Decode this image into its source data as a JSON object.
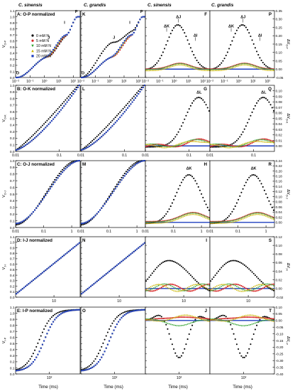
{
  "figure": {
    "column_headers": [
      "C. sinensis",
      "C. grandis",
      "C. sinensis",
      "C. grandis"
    ],
    "legend": [
      {
        "label": "0 mM N",
        "color": "#000000",
        "marker": "circle"
      },
      {
        "label": "5 mM N",
        "color": "#d62728",
        "marker": "circle"
      },
      {
        "label": "10 mM N",
        "color": "#2ca02c",
        "marker": "triangle-down"
      },
      {
        "label": "15 mM N",
        "color": "#c9b400",
        "marker": "triangle-up"
      },
      {
        "label": "20 mM N",
        "color": "#1f3fbf",
        "marker": "square"
      }
    ],
    "x_axis_label": "Time (ms)"
  },
  "chart_data": [
    {
      "row": 0,
      "title": "A: O-P normalized",
      "panels": [
        {
          "letter": "A",
          "type": "scatter",
          "ylabel": "V_{O-P}",
          "ylim": [
            0,
            1.1
          ],
          "yticks": [
            "0.0",
            "0.1",
            "0.2",
            "0.3",
            "0.4",
            "0.5",
            "0.6",
            "0.7",
            "0.8",
            "0.9",
            "1.0",
            "1.1"
          ],
          "xlog": true,
          "xlim": [
            0.01,
            300
          ],
          "xticks": [
            "10⁻²",
            "10⁻¹",
            "10⁰",
            "10¹",
            "10²"
          ],
          "annotations": [
            "O",
            "J",
            "I",
            "P"
          ]
        },
        {
          "letter": "K",
          "type": "scatter",
          "xlog": true,
          "xlim": [
            0.01,
            300
          ],
          "xticks": [
            "10⁻²",
            "10⁻¹",
            "10⁰",
            "10¹",
            "10²"
          ],
          "annotations": [
            "O",
            "J",
            "I",
            "P"
          ]
        },
        {
          "letter": "F",
          "type": "scatter",
          "xlog": true,
          "xlim": [
            0.01,
            300
          ],
          "xticks": [
            "10⁻²",
            "10⁻¹",
            "10⁰",
            "10¹",
            "10²"
          ],
          "annotations": [
            "ΔK",
            "ΔJ",
            "ΔI"
          ]
        },
        {
          "letter": "P",
          "type": "scatter",
          "ylabel": "ΔV_{O-P}",
          "ylim": [
            -0.05,
            0.35
          ],
          "yticks": [
            "-0.05",
            "0.00",
            "0.05",
            "0.10",
            "0.15",
            "0.20",
            "0.25",
            "0.30",
            "0.35"
          ],
          "xlog": true,
          "xlim": [
            0.01,
            300
          ],
          "xticks": [
            "10⁻²",
            "10⁻¹",
            "10⁰",
            "10¹",
            "10²"
          ],
          "annotations": [
            "ΔK",
            "ΔJ",
            "ΔI"
          ]
        }
      ]
    },
    {
      "row": 1,
      "title": "B: O-K normalized",
      "panels": [
        {
          "letter": "B",
          "type": "scatter",
          "ylabel": "V_{O-K}",
          "ylim": [
            0,
            1.0
          ],
          "yticks": [
            "0.0",
            "0.1",
            "0.2",
            "0.3",
            "0.4",
            "0.5",
            "0.6",
            "0.7",
            "0.8",
            "0.9",
            "1.0"
          ],
          "xlog": true,
          "xlim": [
            0.01,
            0.3
          ],
          "xticks": [
            "0.01",
            "0.1"
          ]
        },
        {
          "letter": "L",
          "type": "scatter",
          "xlog": true,
          "xlim": [
            0.01,
            0.3
          ],
          "xticks": [
            "0.01",
            "0.1"
          ]
        },
        {
          "letter": "G",
          "type": "scatter",
          "xlog": true,
          "xlim": [
            0.01,
            0.3
          ],
          "xticks": [
            "0.01",
            "0.1"
          ],
          "annotations": [
            "ΔL"
          ]
        },
        {
          "letter": "Q",
          "type": "scatter",
          "ylabel": "ΔV_{O-K}",
          "ylim": [
            -0.01,
            0.11
          ],
          "yticks": [
            "0.00",
            "0.01",
            "0.02",
            "0.03",
            "0.04",
            "0.05",
            "0.06",
            "0.07",
            "0.08",
            "0.09",
            "0.10"
          ],
          "xlog": true,
          "xlim": [
            0.01,
            0.3
          ],
          "xticks": [
            "0.01",
            "0.1"
          ],
          "annotations": [
            "ΔL"
          ]
        }
      ]
    },
    {
      "row": 2,
      "title": "C: O-J normalized",
      "panels": [
        {
          "letter": "C",
          "type": "scatter",
          "ylabel": "V_{O-J}",
          "ylim": [
            0,
            1.0
          ],
          "yticks": [
            "0.0",
            "0.1",
            "0.2",
            "0.3",
            "0.4",
            "0.5",
            "0.6",
            "0.7",
            "0.8",
            "0.9",
            "1.0"
          ],
          "xlog": true,
          "xlim": [
            0.01,
            2
          ],
          "xticks": [
            "0.01",
            "0.1",
            "1"
          ]
        },
        {
          "letter": "M",
          "type": "scatter",
          "xlog": true,
          "xlim": [
            0.01,
            2
          ],
          "xticks": [
            "0.01",
            "0.1",
            "1"
          ]
        },
        {
          "letter": "H",
          "type": "scatter",
          "xlog": true,
          "xlim": [
            0.01,
            2
          ],
          "xticks": [
            "0.01",
            "0.1",
            "1"
          ],
          "annotations": [
            "ΔK"
          ]
        },
        {
          "letter": "R",
          "type": "scatter",
          "ylabel": "ΔV_{O-J}",
          "ylim": [
            -0.02,
            0.24
          ],
          "yticks": [
            "0.00",
            "0.02",
            "0.04",
            "0.06",
            "0.08",
            "0.10",
            "0.12",
            "0.14",
            "0.16",
            "0.18",
            "0.20",
            "0.22",
            "0.24"
          ],
          "xlog": true,
          "xlim": [
            0.01,
            2
          ],
          "xticks": [
            "0.01",
            "0.1",
            "1"
          ],
          "annotations": [
            "ΔK"
          ]
        }
      ]
    },
    {
      "row": 3,
      "title": "D: I-J normalized",
      "panels": [
        {
          "letter": "D",
          "type": "scatter",
          "ylabel": "V_{J-I}",
          "ylim": [
            0,
            1.1
          ],
          "yticks": [
            "0.0",
            "0.1",
            "0.2",
            "0.3",
            "0.4",
            "0.5",
            "0.6",
            "0.7",
            "0.8",
            "0.9",
            "1.0",
            "1.1"
          ],
          "xlog": true,
          "xlim": [
            2,
            30
          ],
          "xticks": [
            "10"
          ]
        },
        {
          "letter": "N",
          "type": "scatter",
          "xlog": true,
          "xlim": [
            2,
            30
          ],
          "xticks": [
            "10"
          ]
        },
        {
          "letter": "I",
          "type": "scatter",
          "xlog": true,
          "xlim": [
            2,
            30
          ],
          "xticks": [
            "10"
          ]
        },
        {
          "letter": "S",
          "type": "scatter",
          "ylabel": "ΔV_{J-I}",
          "ylim": [
            -0.02,
            0.12
          ],
          "yticks": [
            "-0.02",
            "0.00",
            "0.02",
            "0.04",
            "0.06",
            "0.08",
            "0.10",
            "0.12"
          ],
          "xlog": true,
          "xlim": [
            2,
            30
          ],
          "xticks": [
            "10"
          ]
        }
      ]
    },
    {
      "row": 4,
      "title": "E: I-P normalized",
      "panels": [
        {
          "letter": "E",
          "type": "scatter",
          "ylabel": "V_{I-P}",
          "ylim": [
            0,
            1.1
          ],
          "yticks": [
            "0.0",
            "0.1",
            "0.2",
            "0.3",
            "0.4",
            "0.5",
            "0.6",
            "0.7",
            "0.8",
            "0.9",
            "1.0",
            "1.1"
          ],
          "xlog": true,
          "xlim": [
            30,
            300
          ],
          "xticks": [
            "10²"
          ]
        },
        {
          "letter": "O",
          "type": "scatter",
          "xlog": true,
          "xlim": [
            30,
            300
          ],
          "xticks": [
            "10²"
          ]
        },
        {
          "letter": "J",
          "type": "scatter",
          "xlog": true,
          "xlim": [
            30,
            300
          ],
          "xticks": [
            "10²"
          ]
        },
        {
          "letter": "T",
          "type": "scatter",
          "ylabel": "ΔV_{I-P}",
          "ylim": [
            -0.4,
            0.1
          ],
          "yticks": [
            "-0.40",
            "-0.35",
            "-0.30",
            "-0.25",
            "-0.20",
            "-0.15",
            "-0.10",
            "-0.05",
            "0.00",
            "0.05",
            "0.10"
          ],
          "xlog": true,
          "xlim": [
            30,
            300
          ],
          "xticks": [
            "10²"
          ]
        }
      ]
    }
  ]
}
